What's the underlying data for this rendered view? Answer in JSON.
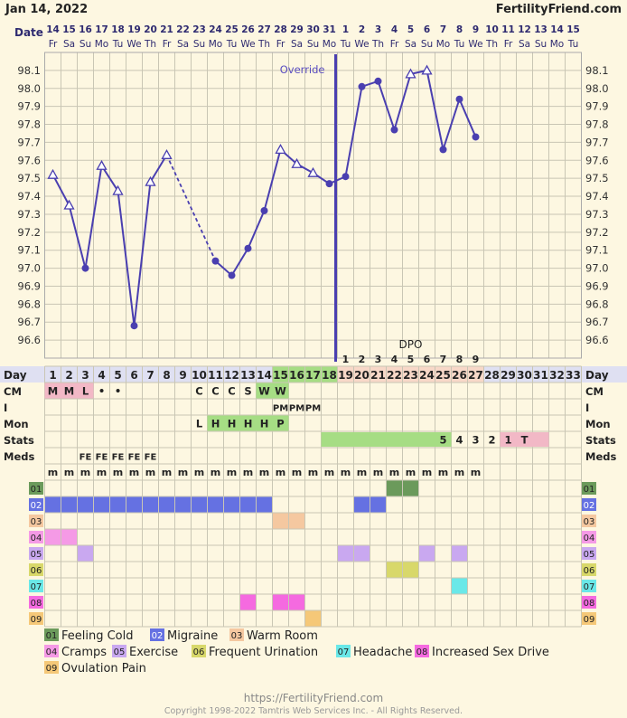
{
  "header": {
    "date": "Jan 14, 2022",
    "brand": "FertilityFriend.com",
    "date_label": "Date"
  },
  "dates": [
    "14",
    "15",
    "16",
    "17",
    "18",
    "19",
    "20",
    "21",
    "22",
    "23",
    "24",
    "25",
    "26",
    "27",
    "28",
    "29",
    "30",
    "31",
    "1",
    "2",
    "3",
    "4",
    "5",
    "6",
    "7",
    "8",
    "9",
    "10",
    "11",
    "12",
    "13",
    "14",
    "15"
  ],
  "weekdays": [
    "Fr",
    "Sa",
    "Su",
    "Mo",
    "Tu",
    "We",
    "Th",
    "Fr",
    "Sa",
    "Su",
    "Mo",
    "Tu",
    "We",
    "Th",
    "Fr",
    "Sa",
    "Su",
    "Mo",
    "Tu",
    "We",
    "Th",
    "Fr",
    "Sa",
    "Su",
    "Mo",
    "Tu",
    "We",
    "Th",
    "Fr",
    "Sa",
    "Su",
    "Mo",
    "Tu"
  ],
  "chart_data": {
    "type": "line",
    "title": "",
    "ylabel": "",
    "xlabel": "Day",
    "ylim": [
      96.5,
      98.2
    ],
    "yticks": [
      "98.1",
      "98.0",
      "97.9",
      "97.8",
      "97.7",
      "97.6",
      "97.5",
      "97.4",
      "97.3",
      "97.2",
      "97.1",
      "97.0",
      "96.9",
      "96.8",
      "96.7",
      "96.6"
    ],
    "cycle_days": [
      1,
      2,
      3,
      4,
      5,
      6,
      7,
      8,
      9,
      10,
      11,
      12,
      13,
      14,
      15,
      16,
      17,
      18,
      19,
      20,
      21,
      22,
      23,
      24,
      25,
      26,
      27,
      28,
      29,
      30,
      31,
      32,
      33
    ],
    "temperatures": [
      97.52,
      97.35,
      97.0,
      97.57,
      97.43,
      96.68,
      97.48,
      97.63,
      null,
      null,
      97.04,
      96.96,
      97.11,
      97.32,
      97.66,
      97.58,
      97.53,
      97.47,
      97.51,
      98.01,
      98.04,
      97.77,
      98.08,
      98.1,
      97.66,
      97.94,
      97.73,
      null,
      null,
      null,
      null,
      null,
      null
    ],
    "markers": [
      "triangle",
      "triangle",
      "dot",
      "triangle",
      "triangle",
      "dot",
      "triangle",
      "triangle",
      null,
      null,
      "dot",
      "dot",
      "dot",
      "dot",
      "triangle",
      "triangle",
      "triangle",
      "dot",
      "dot",
      "dot",
      "dot",
      "dot",
      "triangle",
      "triangle",
      "dot",
      "dot",
      "dot",
      null,
      null,
      null,
      null,
      null,
      null
    ],
    "dashed_segment": [
      8,
      11
    ],
    "override_day": 18,
    "override_label": "Override",
    "dpo_label": "DPO",
    "dpo": {
      "19": "1",
      "20": "2",
      "21": "3",
      "22": "4",
      "23": "5",
      "24": "6",
      "25": "7",
      "26": "8",
      "27": "9"
    }
  },
  "rows": {
    "day_label": "Day",
    "cm_label": "CM",
    "i_label": "I",
    "mon_label": "Mon",
    "stats_label": "Stats",
    "meds_label": "Meds",
    "cm": {
      "1": "M",
      "2": "M",
      "3": "L",
      "4": "•",
      "5": "•",
      "10": "C",
      "11": "C",
      "12": "C",
      "13": "S",
      "14": "W",
      "15": "W"
    },
    "i": {
      "15": "PM",
      "16": "PM",
      "17": "PM"
    },
    "mon": {
      "10": "L",
      "11": "H",
      "12": "H",
      "13": "H",
      "14": "H",
      "15": "P"
    },
    "stats": {
      "25": "5",
      "26": "4",
      "27": "3",
      "28": "2",
      "29": "1",
      "30": "T"
    },
    "meds": {
      "3": "FE",
      "4": "FE",
      "5": "FE",
      "6": "FE",
      "7": "FE"
    },
    "intercourse_symbol": "m",
    "intercourse_days": [
      1,
      2,
      3,
      4,
      5,
      6,
      7,
      8,
      9,
      10,
      11,
      12,
      13,
      14,
      15,
      16,
      17,
      18,
      19,
      20,
      21,
      22,
      23,
      24,
      25,
      26,
      27
    ]
  },
  "symptoms": [
    {
      "code": "01",
      "name": "Feeling Cold",
      "color": "#6b9a5b",
      "label_bg": "#6b9a5b",
      "days": [
        22,
        23
      ]
    },
    {
      "code": "02",
      "name": "Migraine",
      "color": "#6571e2",
      "label_bg": "#6571e2",
      "days": [
        1,
        2,
        3,
        4,
        5,
        6,
        7,
        8,
        9,
        10,
        11,
        12,
        13,
        14,
        20,
        21
      ]
    },
    {
      "code": "03",
      "name": "Warm Room",
      "color": "#f5c8a0",
      "label_bg": "#f5c8a0",
      "days": [
        15,
        16
      ]
    },
    {
      "code": "04",
      "name": "Cramps",
      "color": "#f59ae6",
      "label_bg": "#f59ae6",
      "days": [
        1,
        2
      ]
    },
    {
      "code": "05",
      "name": "Exercise",
      "color": "#c9a8f0",
      "label_bg": "#c9a8f0",
      "days": [
        3,
        19,
        20,
        24,
        26
      ]
    },
    {
      "code": "06",
      "name": "Frequent Urination",
      "color": "#d8d86a",
      "label_bg": "#d8d86a",
      "days": [
        22,
        23
      ]
    },
    {
      "code": "07",
      "name": "Headache",
      "color": "#6ae8e8",
      "label_bg": "#6ae8e8",
      "days": [
        26
      ]
    },
    {
      "code": "08",
      "name": "Increased Sex Drive",
      "color": "#f56ae0",
      "label_bg": "#f56ae0",
      "days": [
        13,
        15,
        16
      ]
    },
    {
      "code": "09",
      "name": "Ovulation Pain",
      "color": "#f5c878",
      "label_bg": "#f5c878",
      "days": [
        17
      ]
    }
  ],
  "footer": {
    "url": "https://FertilityFriend.com",
    "copyright": "Copyright 1998-2022 Tamtris Web Services Inc. - All Rights Reserved."
  },
  "colors": {
    "background": "#fdf7e1",
    "grid": "#c9c6b4",
    "line": "#4a3fb0",
    "label_text": "#2e2a70",
    "day_row_bg": "#dfe0f2",
    "luteal_day_bg": "#f8d8c8",
    "fertile_day_bg": "#a6dd84",
    "cm_pink": "#f2b8c6",
    "green": "#a6dd84",
    "stats_pink": "#f2b8c6"
  }
}
